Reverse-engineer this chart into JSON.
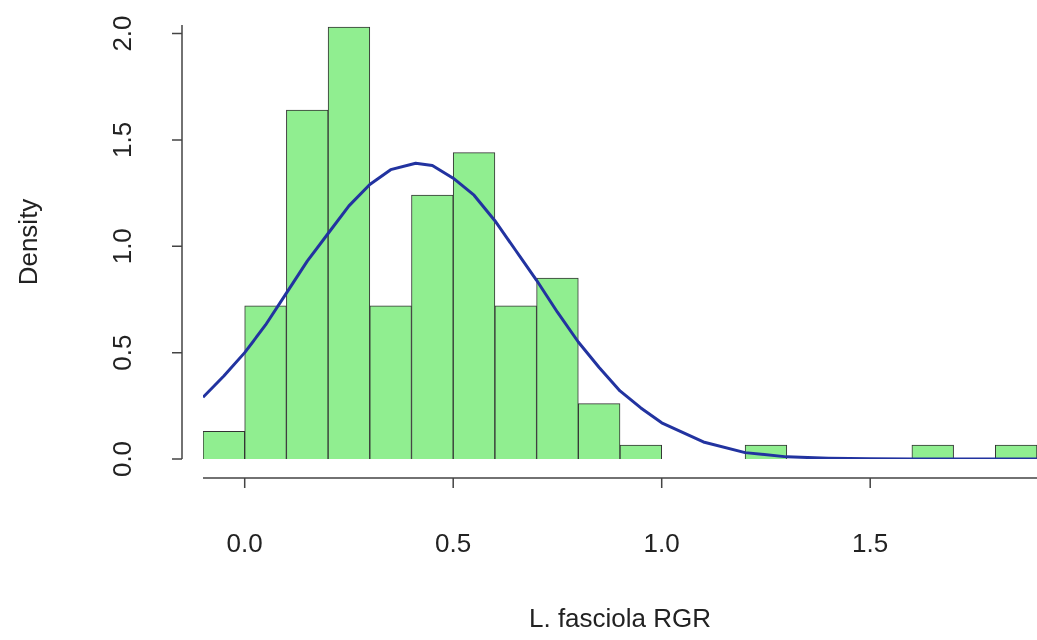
{
  "chart_data": {
    "type": "histogram",
    "xlabel": "L. fasciola RGR",
    "ylabel": "Density",
    "bins": [
      -0.1,
      0,
      0.1,
      0.2,
      0.3,
      0.4,
      0.5,
      0.6,
      0.7,
      0.8,
      0.9,
      1.0,
      1.1,
      1.2,
      1.3,
      1.4,
      1.5,
      1.6,
      1.7,
      1.8,
      1.9
    ],
    "values": [
      0.13,
      0.72,
      1.64,
      2.03,
      0.72,
      1.24,
      1.44,
      0.72,
      0.85,
      0.26,
      0.065,
      0,
      0,
      0.065,
      0,
      0,
      0,
      0.065,
      0,
      0.065
    ],
    "color": "#90ee90",
    "series": [
      {
        "type": "line",
        "color": "#2233a0",
        "x": [
          -0.1,
          -0.05,
          0,
          0.05,
          0.1,
          0.15,
          0.2,
          0.25,
          0.3,
          0.35,
          0.41,
          0.45,
          0.5,
          0.55,
          0.6,
          0.65,
          0.7,
          0.75,
          0.8,
          0.85,
          0.9,
          0.95,
          1.0,
          1.1,
          1.2,
          1.3,
          1.4,
          1.5,
          1.6,
          1.7,
          1.8,
          1.9
        ],
        "values": [
          0.29,
          0.39,
          0.5,
          0.63,
          0.78,
          0.93,
          1.06,
          1.19,
          1.29,
          1.36,
          1.39,
          1.38,
          1.32,
          1.24,
          1.12,
          0.98,
          0.84,
          0.69,
          0.55,
          0.43,
          0.32,
          0.24,
          0.17,
          0.08,
          0.03,
          0.01,
          0.004,
          0.001,
          0,
          0,
          0,
          0
        ]
      }
    ],
    "xlim": [
      -0.1,
      1.9
    ],
    "xticks": [
      {
        "value": 0,
        "label": "0.0"
      },
      0.5,
      {
        "value": 1,
        "label": "1.0"
      },
      1.5
    ],
    "ylim": [
      0,
      2.04
    ],
    "yticks": [
      {
        "value": 0,
        "label": "0.0"
      },
      0.5,
      {
        "value": 1,
        "label": "1.0"
      },
      1.5,
      {
        "value": 2,
        "label": "2.0"
      }
    ]
  }
}
